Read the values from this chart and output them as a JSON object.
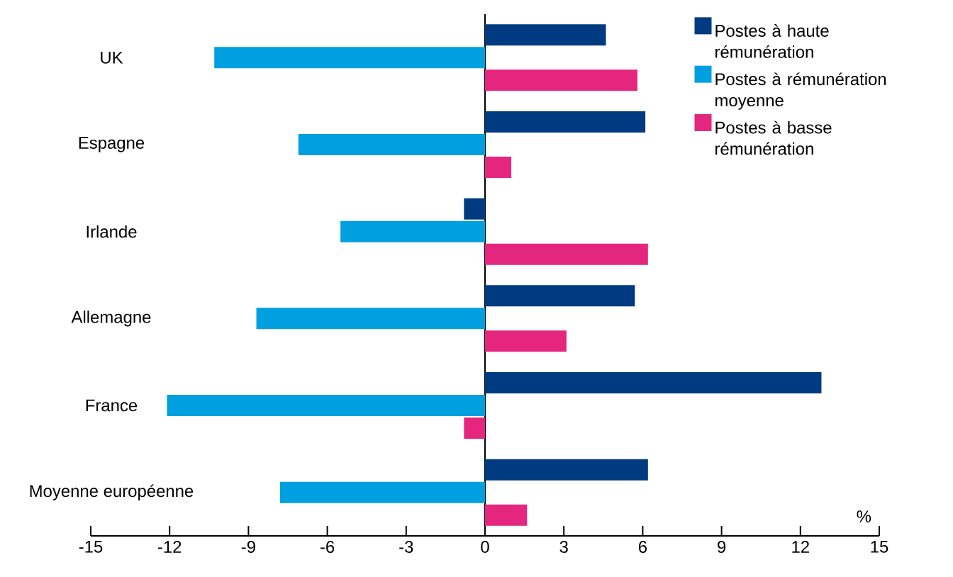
{
  "chart_data": {
    "type": "bar",
    "orientation": "horizontal",
    "xlabel": "%",
    "categories": [
      "UK",
      "Espagne",
      "Irlande",
      "Allemagne",
      "France",
      "Moyenne européenne"
    ],
    "series": [
      {
        "name": "Postes à haute rémunération",
        "color": "#003a80",
        "values": [
          4.6,
          6.1,
          -0.8,
          5.7,
          12.8,
          6.2
        ]
      },
      {
        "name": "Postes à rémunération moyenne",
        "color": "#009fdf",
        "values": [
          -10.3,
          -7.1,
          -5.5,
          -8.7,
          -12.1,
          -7.8
        ]
      },
      {
        "name": "Postes à basse rémunération",
        "color": "#e5267f",
        "values": [
          5.8,
          1.0,
          6.2,
          3.1,
          -0.8,
          1.6
        ]
      }
    ],
    "xlim": [
      -15,
      15
    ],
    "xticks": [
      -15,
      -12,
      -9,
      -6,
      -3,
      0,
      3,
      6,
      9,
      12,
      15
    ],
    "legend": "top right"
  }
}
